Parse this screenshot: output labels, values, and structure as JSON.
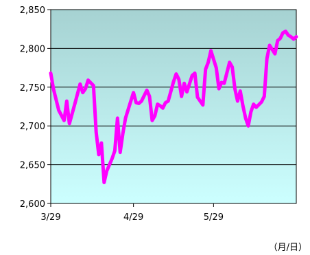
{
  "chart_data": {
    "type": "line",
    "title": "",
    "xlabel": "（月/日）",
    "ylabel": "",
    "ylim": [
      2600,
      2850
    ],
    "yticks": [
      2600,
      2650,
      2700,
      2750,
      2800,
      2850
    ],
    "ytick_labels": [
      "2,600",
      "2,650",
      "2,700",
      "2,750",
      "2,800",
      "2,850"
    ],
    "xticks": [
      {
        "label": "3/29",
        "x": 0
      },
      {
        "label": "4/29",
        "x": 31
      },
      {
        "label": "5/29",
        "x": 61
      }
    ],
    "xlim": [
      0,
      92
    ],
    "grid": true,
    "colors": {
      "line": "#ff00ff",
      "bg_top": "#a6d2d2",
      "bg_bottom": "#ccffff",
      "grid": "#000000"
    },
    "series": [
      {
        "name": "",
        "x": [
          0,
          1,
          3,
          5,
          6,
          7,
          9,
          11,
          12,
          13,
          14,
          16,
          17,
          18,
          19,
          20,
          21,
          23,
          24,
          25,
          26,
          27,
          28,
          30,
          31,
          32,
          33,
          34,
          36,
          37,
          38,
          39,
          40,
          41,
          42,
          43,
          44,
          46,
          47,
          48,
          49,
          50,
          51,
          53,
          54,
          55,
          57,
          58,
          59,
          60,
          62,
          63,
          64,
          65,
          67,
          68,
          69,
          70,
          71,
          72,
          73,
          74,
          75,
          76,
          77,
          79,
          80,
          81,
          82,
          84,
          85,
          86,
          87,
          88,
          89,
          90,
          91,
          92
        ],
        "y": [
          2768,
          2748,
          2720,
          2707,
          2732,
          2703,
          2728,
          2754,
          2743,
          2748,
          2759,
          2752,
          2692,
          2663,
          2678,
          2627,
          2642,
          2658,
          2668,
          2710,
          2666,
          2690,
          2710,
          2732,
          2743,
          2730,
          2729,
          2732,
          2746,
          2738,
          2707,
          2713,
          2728,
          2726,
          2723,
          2730,
          2732,
          2757,
          2767,
          2760,
          2738,
          2755,
          2744,
          2765,
          2768,
          2737,
          2727,
          2773,
          2782,
          2797,
          2775,
          2748,
          2756,
          2755,
          2782,
          2776,
          2748,
          2732,
          2745,
          2726,
          2710,
          2700,
          2718,
          2728,
          2724,
          2731,
          2738,
          2787,
          2804,
          2793,
          2810,
          2813,
          2820,
          2822,
          2817,
          2815,
          2812,
          2815
        ]
      }
    ]
  }
}
